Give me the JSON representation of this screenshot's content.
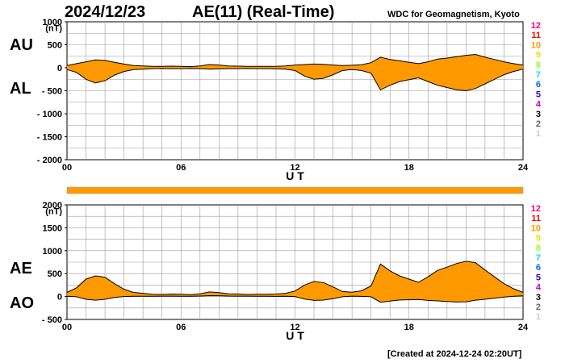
{
  "header": {
    "date": "2024/12/23",
    "title": "AE(11) (Real-Time)",
    "source": "WDC for Geomagnetism, Kyoto"
  },
  "footer": {
    "created": "[Created at 2024-12-24 02:20UT]"
  },
  "colors": {
    "fill": "#ff9900",
    "line": "#000000",
    "grid": "#999999"
  },
  "station_count_labels": [
    {
      "text": "12",
      "color": "#ff0080"
    },
    {
      "text": "11",
      "color": "#ff0000"
    },
    {
      "text": "10",
      "color": "#ff9900"
    },
    {
      "text": "9",
      "color": "#e6e600"
    },
    {
      "text": "8",
      "color": "#99ff33"
    },
    {
      "text": "7",
      "color": "#00e6e6"
    },
    {
      "text": "6",
      "color": "#0066ff"
    },
    {
      "text": "5",
      "color": "#3300cc"
    },
    {
      "text": "4",
      "color": "#cc00cc"
    },
    {
      "text": "3",
      "color": "#000000"
    },
    {
      "text": "2",
      "color": "#666666"
    },
    {
      "text": "1",
      "color": "#cccccc"
    }
  ],
  "chart_data": [
    {
      "type": "area",
      "panel": "AU/AL",
      "series_labels": [
        "AU",
        "AL"
      ],
      "ylabel": "(nT)",
      "xlabel": "U T",
      "xticks": [
        "00",
        "06",
        "12",
        "18",
        "24"
      ],
      "xlim": [
        0,
        24
      ],
      "yticks": [
        "1000",
        "500",
        "0",
        "- 500",
        "- 1000",
        "- 1500",
        "- 2000"
      ],
      "ylim": [
        -2000,
        1000
      ],
      "grid": true,
      "series": [
        {
          "name": "AU",
          "x": [
            0,
            0.5,
            1,
            1.5,
            2,
            2.5,
            3,
            3.5,
            4,
            4.5,
            5,
            5.5,
            6,
            6.5,
            7,
            7.5,
            8,
            8.5,
            9,
            9.5,
            10,
            10.5,
            11,
            11.5,
            12,
            12.5,
            13,
            13.5,
            14,
            14.5,
            15,
            15.5,
            16,
            16.5,
            17,
            17.5,
            18,
            18.5,
            19,
            19.5,
            20,
            20.5,
            21,
            21.5,
            22,
            22.5,
            23,
            23.5,
            24
          ],
          "values": [
            50,
            90,
            130,
            170,
            160,
            120,
            80,
            50,
            40,
            30,
            30,
            35,
            30,
            25,
            40,
            70,
            60,
            40,
            35,
            30,
            30,
            30,
            30,
            40,
            60,
            70,
            80,
            75,
            60,
            50,
            55,
            65,
            110,
            230,
            180,
            150,
            120,
            90,
            130,
            190,
            210,
            240,
            270,
            290,
            230,
            180,
            130,
            90,
            60
          ]
        },
        {
          "name": "AL",
          "x": [
            0,
            0.5,
            1,
            1.5,
            2,
            2.5,
            3,
            3.5,
            4,
            4.5,
            5,
            5.5,
            6,
            6.5,
            7,
            7.5,
            8,
            8.5,
            9,
            9.5,
            10,
            10.5,
            11,
            11.5,
            12,
            12.5,
            13,
            13.5,
            14,
            14.5,
            15,
            15.5,
            16,
            16.5,
            17,
            17.5,
            18,
            18.5,
            19,
            19.5,
            20,
            20.5,
            21,
            21.5,
            22,
            22.5,
            23,
            23.5,
            24
          ],
          "values": [
            -40,
            -100,
            -250,
            -330,
            -280,
            -160,
            -80,
            -40,
            -30,
            -20,
            -15,
            -20,
            -20,
            -15,
            -20,
            -30,
            -25,
            -20,
            -20,
            -15,
            -20,
            -20,
            -25,
            -30,
            -60,
            -180,
            -250,
            -230,
            -150,
            -60,
            -40,
            -60,
            -120,
            -480,
            -380,
            -300,
            -260,
            -220,
            -300,
            -380,
            -430,
            -480,
            -500,
            -450,
            -350,
            -250,
            -150,
            -80,
            -30
          ]
        }
      ]
    },
    {
      "type": "area",
      "panel": "AE/AO",
      "series_labels": [
        "AE",
        "AO"
      ],
      "ylabel": "(nT)",
      "xlabel": "U T",
      "xticks": [
        "00",
        "06",
        "12",
        "18",
        "24"
      ],
      "xlim": [
        0,
        24
      ],
      "yticks": [
        "2000",
        "1500",
        "1000",
        "500",
        "0",
        "- 500"
      ],
      "ylim": [
        -500,
        2000
      ],
      "grid": true,
      "series": [
        {
          "name": "AE",
          "x": [
            0,
            0.5,
            1,
            1.5,
            2,
            2.5,
            3,
            3.5,
            4,
            4.5,
            5,
            5.5,
            6,
            6.5,
            7,
            7.5,
            8,
            8.5,
            9,
            9.5,
            10,
            10.5,
            11,
            11.5,
            12,
            12.5,
            13,
            13.5,
            14,
            14.5,
            15,
            15.5,
            16,
            16.5,
            17,
            17.5,
            18,
            18.5,
            19,
            19.5,
            20,
            20.5,
            21,
            21.5,
            22,
            22.5,
            23,
            23.5,
            24
          ],
          "values": [
            90,
            190,
            380,
            450,
            420,
            280,
            160,
            90,
            70,
            50,
            45,
            55,
            50,
            40,
            60,
            100,
            85,
            60,
            55,
            45,
            50,
            50,
            55,
            70,
            120,
            250,
            330,
            305,
            210,
            110,
            95,
            125,
            230,
            710,
            560,
            450,
            380,
            310,
            430,
            570,
            640,
            720,
            770,
            740,
            580,
            430,
            280,
            170,
            90
          ]
        },
        {
          "name": "AO",
          "x": [
            0,
            0.5,
            1,
            1.5,
            2,
            2.5,
            3,
            3.5,
            4,
            4.5,
            5,
            5.5,
            6,
            6.5,
            7,
            7.5,
            8,
            8.5,
            9,
            9.5,
            10,
            10.5,
            11,
            11.5,
            12,
            12.5,
            13,
            13.5,
            14,
            14.5,
            15,
            15.5,
            16,
            16.5,
            17,
            17.5,
            18,
            18.5,
            19,
            19.5,
            20,
            20.5,
            21,
            21.5,
            22,
            22.5,
            23,
            23.5,
            24
          ],
          "values": [
            5,
            -5,
            -60,
            -80,
            -60,
            -20,
            0,
            5,
            5,
            5,
            8,
            8,
            5,
            5,
            10,
            20,
            18,
            10,
            8,
            8,
            5,
            5,
            3,
            5,
            0,
            -55,
            -85,
            -78,
            -45,
            -5,
            8,
            3,
            -5,
            -125,
            -100,
            -75,
            -70,
            -65,
            -85,
            -95,
            -110,
            -120,
            -115,
            -80,
            -60,
            -35,
            -10,
            5,
            15
          ]
        }
      ]
    }
  ]
}
